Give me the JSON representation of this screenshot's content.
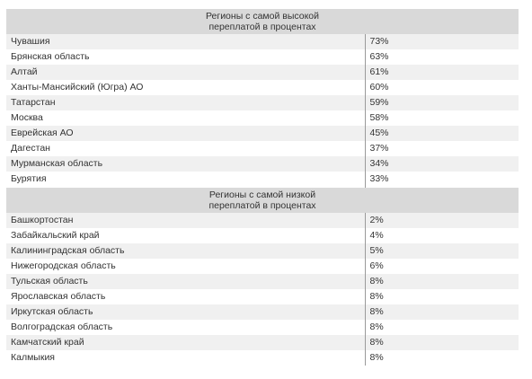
{
  "high": {
    "title_line1": "Регионы с самой высокой",
    "title_line2": "переплатой в процентах",
    "rows": [
      {
        "region": "Чувашия",
        "value": "73%"
      },
      {
        "region": "Брянская область",
        "value": "63%"
      },
      {
        "region": "Алтай",
        "value": "61%"
      },
      {
        "region": "Ханты-Мансийский (Югра) АО",
        "value": "60%"
      },
      {
        "region": "Татарстан",
        "value": "59%"
      },
      {
        "region": "Москва",
        "value": "58%"
      },
      {
        "region": "Еврейская АО",
        "value": "45%"
      },
      {
        "region": "Дагестан",
        "value": "37%"
      },
      {
        "region": "Мурманская область",
        "value": "34%"
      },
      {
        "region": "Бурятия",
        "value": "33%"
      }
    ]
  },
  "low": {
    "title_line1": "Регионы с самой низкой",
    "title_line2": "переплатой в процентах",
    "rows": [
      {
        "region": "Башкортостан",
        "value": "2%"
      },
      {
        "region": "Забайкальский край",
        "value": "4%"
      },
      {
        "region": "Калининградская область",
        "value": "5%"
      },
      {
        "region": "Нижегородская область",
        "value": "6%"
      },
      {
        "region": "Тульская область",
        "value": "8%"
      },
      {
        "region": "Ярославская область",
        "value": "8%"
      },
      {
        "region": "Иркутская область",
        "value": "8%"
      },
      {
        "region": "Волгоградская область",
        "value": "8%"
      },
      {
        "region": "Камчатский край",
        "value": "8%"
      },
      {
        "region": "Калмыкия",
        "value": "8%"
      }
    ]
  }
}
